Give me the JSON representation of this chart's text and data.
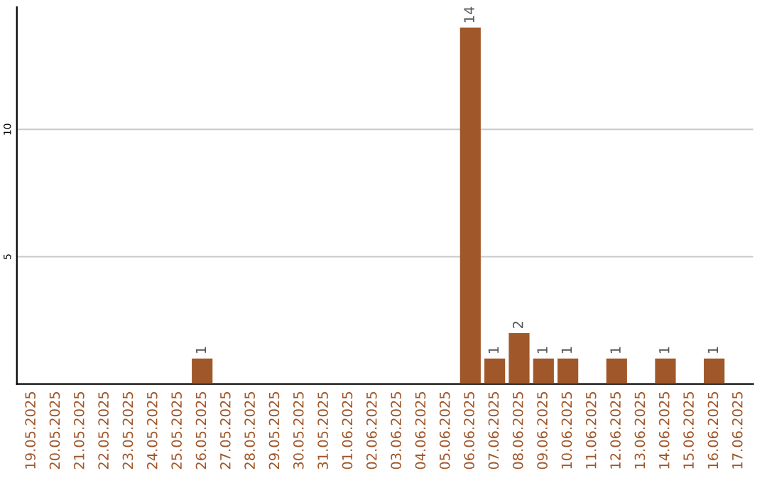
{
  "chart_data": {
    "type": "bar",
    "categories": [
      "19.05.2025",
      "20.05.2025",
      "21.05.2025",
      "22.05.2025",
      "23.05.2025",
      "24.05.2025",
      "25.05.2025",
      "26.05.2025",
      "27.05.2025",
      "28.05.2025",
      "29.05.2025",
      "30.05.2025",
      "31.05.2025",
      "01.06.2025",
      "02.06.2025",
      "03.06.2025",
      "04.06.2025",
      "05.06.2025",
      "06.06.2025",
      "07.06.2025",
      "08.06.2025",
      "09.06.2025",
      "10.06.2025",
      "11.06.2025",
      "12.06.2025",
      "13.06.2025",
      "14.06.2025",
      "15.06.2025",
      "16.06.2025",
      "17.06.2025"
    ],
    "values": [
      0,
      0,
      0,
      0,
      0,
      0,
      0,
      1,
      0,
      0,
      0,
      0,
      0,
      0,
      0,
      0,
      0,
      0,
      14,
      1,
      2,
      1,
      1,
      0,
      1,
      0,
      1,
      0,
      1,
      0
    ],
    "value_labels": [
      null,
      null,
      null,
      null,
      null,
      null,
      null,
      "1",
      null,
      null,
      null,
      null,
      null,
      null,
      null,
      null,
      null,
      null,
      "14",
      "1",
      "2",
      "1",
      "1",
      null,
      "1",
      null,
      "1",
      null,
      "1",
      null
    ],
    "color": "#a0572a",
    "ylim": [
      0,
      14.8
    ],
    "yticks": [
      5,
      10
    ],
    "grid": "y"
  }
}
